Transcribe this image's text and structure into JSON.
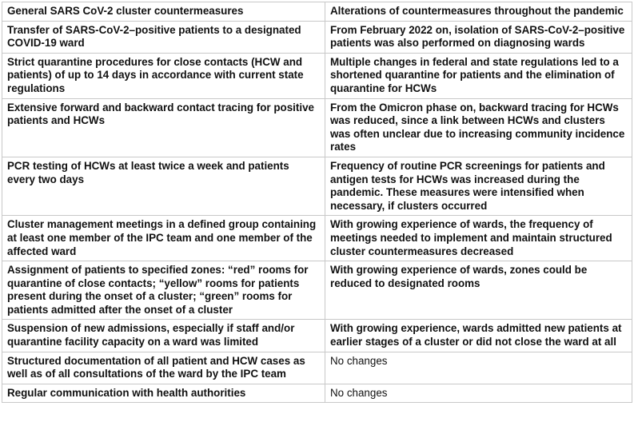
{
  "table": {
    "header": [
      "General SARS CoV-2 cluster countermeasures",
      "Alterations of countermeasures throughout the pandemic"
    ],
    "rows": [
      {
        "measure": "Transfer of SARS-CoV-2–positive patients to a designated COVID-19 ward",
        "alteration": "From February 2022 on, isolation of SARS-CoV-2–positive patients was also performed on diagnosing wards"
      },
      {
        "measure": "Strict quarantine procedures for close contacts (HCW and patients) of up to 14 days in accordance with current state regulations",
        "alteration": "Multiple changes in federal and state regulations led to a shortened quarantine for patients and the elimination of quarantine for HCWs"
      },
      {
        "measure": "Extensive forward and backward contact tracing for positive patients and HCWs",
        "alteration": "From the Omicron phase on, backward tracing for HCWs was reduced, since a link between HCWs and clusters was often unclear due to increasing community incidence rates"
      },
      {
        "measure": "PCR testing of HCWs at least twice a week and patients every two days",
        "alteration": "Frequency of routine PCR screenings for patients and antigen tests for HCWs was increased during the pandemic. These measures were intensified when necessary, if clusters occurred"
      },
      {
        "measure": "Cluster management meetings in a defined group containing at least one member of the IPC team and one member of the affected ward",
        "alteration": "With growing experience of wards, the frequency of meetings needed to implement and maintain structured cluster countermeasures decreased"
      },
      {
        "measure": "Assignment of patients to specified zones: “red” rooms for quarantine of close contacts; “yellow” rooms for patients present during the onset of a cluster; “green” rooms for patients admitted after the onset of a cluster",
        "alteration": "With growing experience of wards, zones could be reduced to designated rooms"
      },
      {
        "measure": "Suspension of new admissions, especially if staff and/or quarantine facility capacity on a ward was limited",
        "alteration": "With growing experience, wards admitted new patients at earlier stages of a cluster or did not close the ward at all"
      },
      {
        "measure": "Structured documentation of all patient and HCW cases as well as of all consultations of the ward by the IPC team",
        "alteration": "No changes"
      },
      {
        "measure": "Regular communication with health authorities",
        "alteration": "No changes"
      }
    ]
  }
}
